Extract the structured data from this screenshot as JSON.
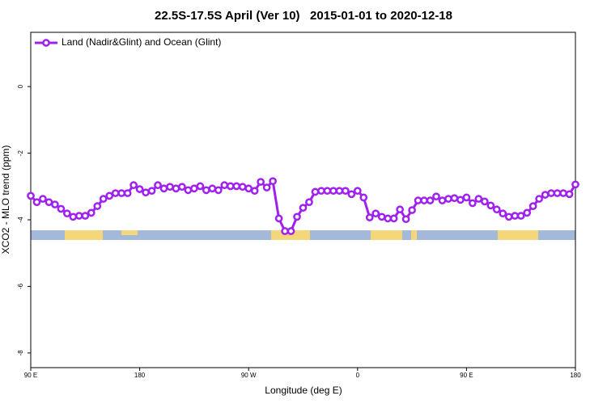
{
  "chart_data": {
    "type": "line",
    "title": "22.5S-17.5S April (Ver 10)   2015-01-01 to 2020-12-18",
    "x_label": "Longitude (deg E)",
    "y_label": "XCO2 - MLO trend (ppm)",
    "x": [
      90,
      95,
      100,
      105,
      110,
      115,
      120,
      125,
      130,
      135,
      140,
      145,
      150,
      155,
      160,
      165,
      170,
      175,
      180,
      185,
      190,
      195,
      200,
      205,
      210,
      215,
      220,
      225,
      230,
      235,
      240,
      245,
      250,
      255,
      260,
      265,
      270,
      275,
      280,
      285,
      290,
      295,
      300,
      305,
      310,
      315,
      320,
      325,
      330,
      335,
      340,
      345,
      350,
      355,
      360,
      365,
      370,
      375,
      380,
      385,
      390,
      395,
      400,
      405,
      410,
      415,
      420,
      425,
      430,
      435,
      440,
      445,
      450,
      455,
      460,
      465,
      470,
      475,
      480,
      485,
      490,
      495,
      500,
      505,
      510,
      515,
      520,
      525,
      530,
      535,
      540
    ],
    "series": [
      {
        "name": "Land (Nadir&Glint) and Ocean (Glint)",
        "color": "#a020f0",
        "values": [
          -3.28,
          -3.47,
          -3.37,
          -3.47,
          -3.54,
          -3.67,
          -3.81,
          -3.91,
          -3.88,
          -3.88,
          -3.79,
          -3.59,
          -3.37,
          -3.28,
          -3.2,
          -3.2,
          -3.2,
          -2.96,
          -3.08,
          -3.18,
          -3.13,
          -2.96,
          -3.06,
          -3.01,
          -3.06,
          -3.01,
          -3.11,
          -3.06,
          -2.99,
          -3.11,
          -3.06,
          -3.11,
          -2.96,
          -2.99,
          -2.99,
          -3.01,
          -3.06,
          -3.13,
          -2.86,
          -3.03,
          -2.84,
          -3.96,
          -4.34,
          -4.34,
          -3.91,
          -3.64,
          -3.47,
          -3.16,
          -3.13,
          -3.13,
          -3.13,
          -3.13,
          -3.13,
          -3.23,
          -3.13,
          -3.33,
          -3.93,
          -3.81,
          -3.91,
          -3.96,
          -3.96,
          -3.69,
          -3.98,
          -3.71,
          -3.42,
          -3.42,
          -3.42,
          -3.3,
          -3.42,
          -3.37,
          -3.35,
          -3.4,
          -3.33,
          -3.5,
          -3.37,
          -3.45,
          -3.57,
          -3.69,
          -3.81,
          -3.91,
          -3.88,
          -3.88,
          -3.79,
          -3.59,
          -3.37,
          -3.25,
          -3.2,
          -3.2,
          -3.2,
          -3.23,
          -2.94
        ]
      }
    ],
    "xlim": [
      90,
      540
    ],
    "xticks": [
      {
        "value": 90,
        "label": "90 E"
      },
      180,
      {
        "value": 270,
        "label": "90 W"
      },
      {
        "value": 360,
        "label": "0"
      },
      {
        "value": 450,
        "label": "90 E"
      },
      {
        "value": 540,
        "label": "180"
      }
    ],
    "ylim": [
      -8.44,
      1.63
    ],
    "yticks": [
      0,
      -2,
      -4,
      -6,
      -8
    ],
    "legend": "topleft"
  }
}
